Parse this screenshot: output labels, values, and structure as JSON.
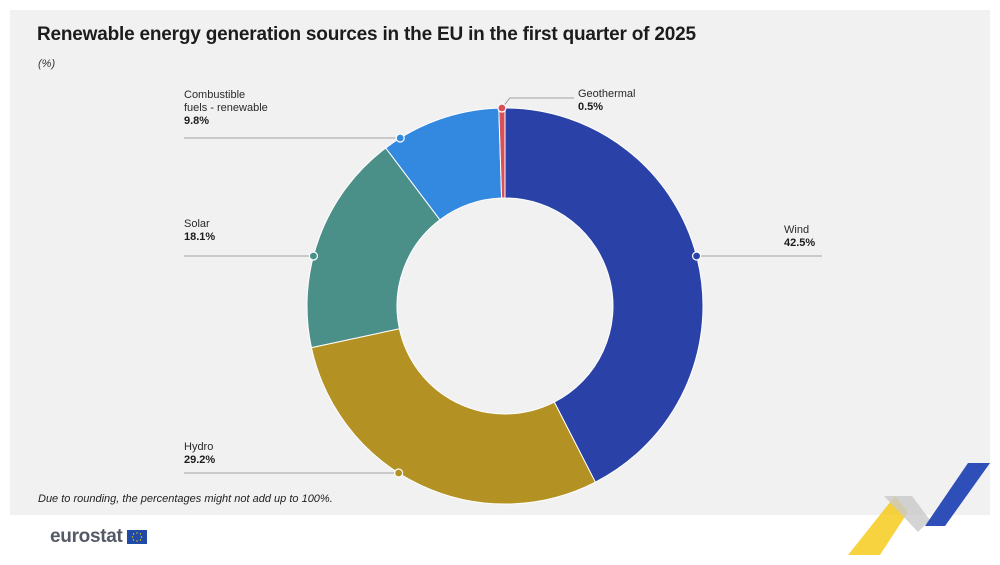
{
  "title": "Renewable energy generation sources in the EU in the first quarter of  2025",
  "unit": "(%)",
  "footnote": "Due to rounding, the percentages might not add up to 100%.",
  "brand": "eurostat",
  "chart_data": {
    "type": "pie",
    "variant": "donut",
    "title": "Renewable energy generation sources in the EU in the first quarter of  2025",
    "unit": "%",
    "slices": [
      {
        "label": "Wind",
        "value": 42.5,
        "display": "42.5%",
        "color": "#2a42a8"
      },
      {
        "label": "Hydro",
        "value": 29.2,
        "display": "29.2%",
        "color": "#b39223"
      },
      {
        "label": "Solar",
        "value": 18.1,
        "display": "18.1%",
        "color": "#4a8f88"
      },
      {
        "label": "Combustible fuels - renewable",
        "label_lines": [
          "Combustible",
          "fuels - renewable"
        ],
        "value": 9.8,
        "display": "9.8%",
        "color": "#3389e0"
      },
      {
        "label": "Geothermal",
        "value": 0.5,
        "display": "0.5%",
        "color": "#d9505a"
      }
    ]
  }
}
